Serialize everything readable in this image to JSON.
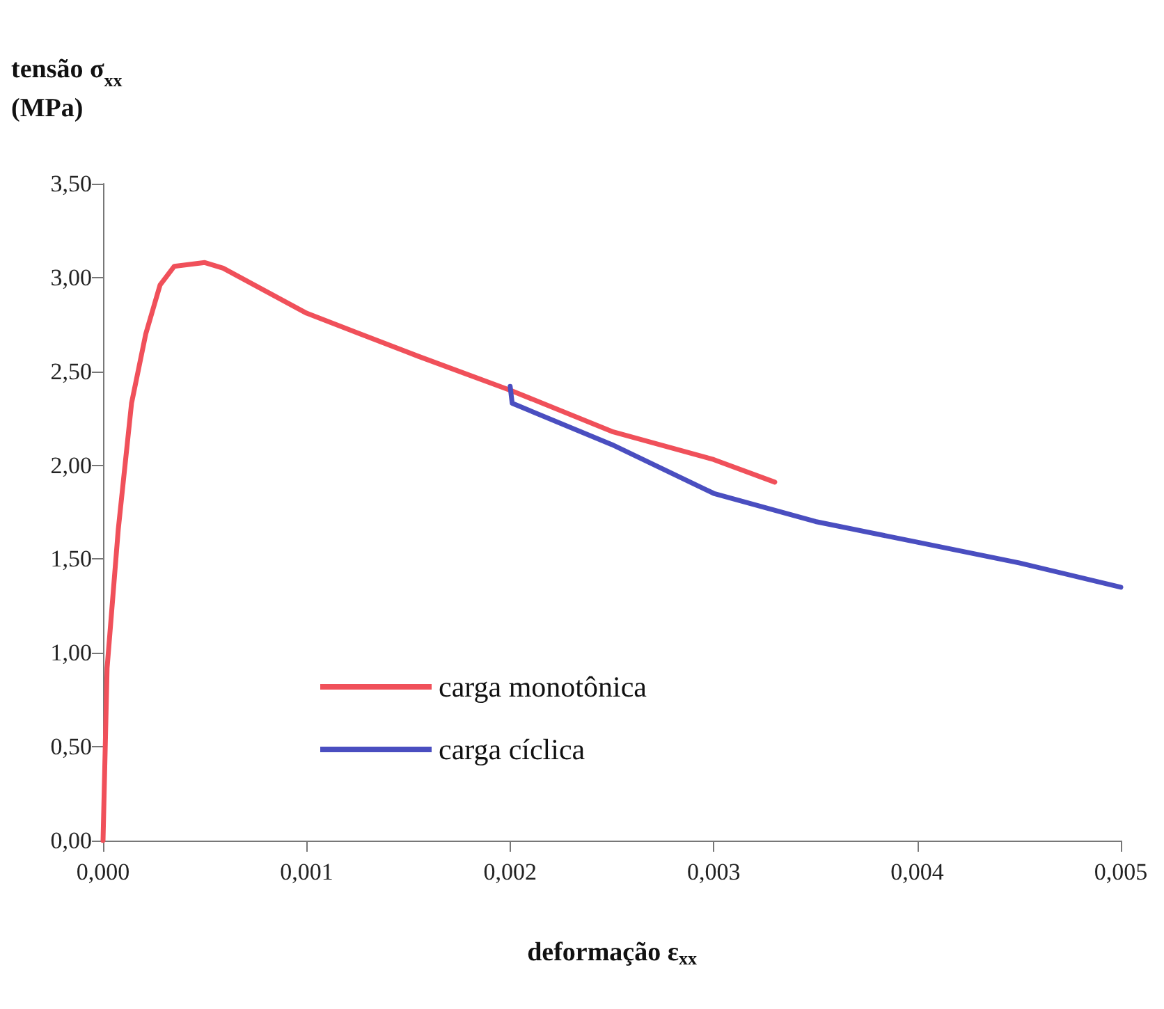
{
  "chart_data": {
    "type": "line",
    "xlabel": "deformação ε$_{xx}$",
    "ylabel": "tensão σ$_{xx}$\n(MPa)",
    "xlim": [
      0,
      0.005
    ],
    "ylim": [
      0,
      3.5
    ],
    "xticks": [
      {
        "value": 0,
        "label": "0,000"
      },
      {
        "value": 0.001,
        "label": "0,001"
      },
      {
        "value": 0.002,
        "label": "0,002"
      },
      {
        "value": 0.003,
        "label": "0,003"
      },
      {
        "value": 0.004,
        "label": "0,004"
      },
      {
        "value": 0.005,
        "label": "0,005"
      }
    ],
    "yticks": [
      {
        "value": 0,
        "label": "0,00"
      },
      {
        "value": 0.5,
        "label": "0,50"
      },
      {
        "value": 1,
        "label": "1,00"
      },
      {
        "value": 1.5,
        "label": "1,50"
      },
      {
        "value": 2,
        "label": "2,00"
      },
      {
        "value": 2.5,
        "label": "2,50"
      },
      {
        "value": 3,
        "label": "3,00"
      },
      {
        "value": 3.5,
        "label": "3,50"
      }
    ],
    "grid": false,
    "legend": "bottom left",
    "marker": "none",
    "line_style": "solid",
    "series": [
      {
        "name": "carga monotônica",
        "color": "#f0505a",
        "x": [
          0,
          2e-05,
          7.5e-05,
          0.00014,
          0.00021,
          0.00028,
          0.00035,
          0.0005,
          0.00059,
          0.001,
          0.00155,
          0.002,
          0.0025,
          0.003,
          0.0033
        ],
        "values": [
          0,
          0.92,
          1.66,
          2.33,
          2.7,
          2.96,
          3.06,
          3.08,
          3.05,
          2.81,
          2.58,
          2.4,
          2.18,
          2.03,
          1.91
        ]
      },
      {
        "name": "carga cíclica",
        "color": "#4a4ec0",
        "x": [
          0.002,
          0.00201,
          0.0025,
          0.003,
          0.0035,
          0.004,
          0.0045,
          0.005
        ],
        "values": [
          2.42,
          2.33,
          2.11,
          1.85,
          1.7,
          1.59,
          1.48,
          1.35
        ]
      }
    ]
  }
}
